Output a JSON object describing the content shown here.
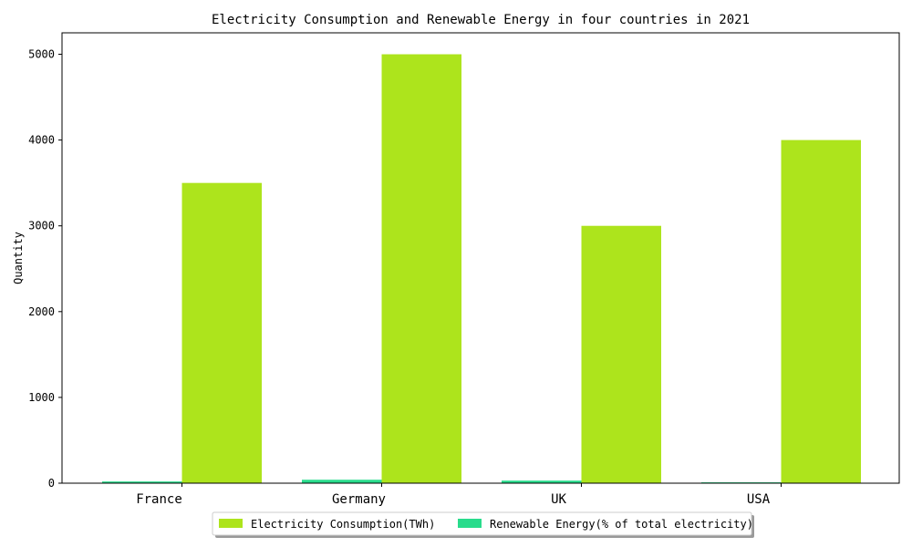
{
  "chart_data": {
    "type": "bar",
    "title": "Electricity Consumption and Renewable Energy in four countries in 2021",
    "xlabel": "",
    "ylabel": "Quantity",
    "categories": [
      "France",
      "Germany",
      "UK",
      "USA"
    ],
    "series": [
      {
        "name": "Renewable Energy(% of total electricity)",
        "values": [
          20,
          40,
          30,
          10
        ],
        "color": "#29dc8c"
      },
      {
        "name": "Electricity Consumption(TWh)",
        "values": [
          3500,
          5000,
          3000,
          4000
        ],
        "color": "#ade41c"
      }
    ],
    "ylim": [
      0,
      5250
    ],
    "yticks": [
      0,
      1000,
      2000,
      3000,
      4000,
      5000
    ],
    "grid": false,
    "legend_position": "bottom-center",
    "legend_order": [
      1,
      0
    ]
  }
}
